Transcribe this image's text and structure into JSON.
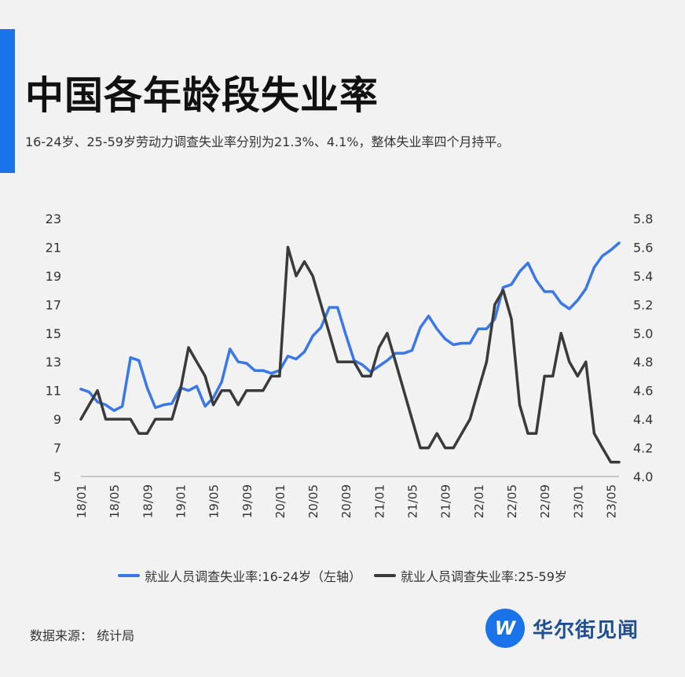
{
  "header": {
    "title": "中国各年龄段失业率",
    "subtitle": "16-24岁、25-59岁劳动力调查失业率分别为21.3%、4.1%，整体失业率四个月持平。"
  },
  "footer": {
    "source": "数据来源：  统计局",
    "logo_mark": "W",
    "logo_text": "华尔街见闻"
  },
  "colors": {
    "accent": "#1a73e8",
    "series_youth": "#3b78e7",
    "series_adult": "#3a3a3a"
  },
  "chart_data": {
    "type": "line",
    "x": [
      "18/01",
      "18/02",
      "18/03",
      "18/04",
      "18/05",
      "18/06",
      "18/07",
      "18/08",
      "18/09",
      "18/10",
      "18/11",
      "18/12",
      "19/01",
      "19/02",
      "19/03",
      "19/04",
      "19/05",
      "19/06",
      "19/07",
      "19/08",
      "19/09",
      "19/10",
      "19/11",
      "19/12",
      "20/01",
      "20/02",
      "20/03",
      "20/04",
      "20/05",
      "20/06",
      "20/07",
      "20/08",
      "20/09",
      "20/10",
      "20/11",
      "20/12",
      "21/01",
      "21/02",
      "21/03",
      "21/04",
      "21/05",
      "21/06",
      "21/07",
      "21/08",
      "21/09",
      "21/10",
      "21/11",
      "21/12",
      "22/01",
      "22/02",
      "22/03",
      "22/04",
      "22/05",
      "22/06",
      "22/07",
      "22/08",
      "22/09",
      "22/10",
      "22/11",
      "22/12",
      "23/01",
      "23/02",
      "23/03",
      "23/04",
      "23/05",
      "23/06"
    ],
    "xticks": [
      "18/01",
      "18/05",
      "18/09",
      "19/01",
      "19/05",
      "19/09",
      "20/01",
      "20/05",
      "20/09",
      "21/01",
      "21/05",
      "21/09",
      "22/01",
      "22/05",
      "22/09",
      "23/01",
      "23/05"
    ],
    "series": [
      {
        "name": "就业人员调查失业率:16-24岁（左轴）",
        "axis": "left",
        "values": [
          11.1,
          10.9,
          10.2,
          10.0,
          9.6,
          9.9,
          13.3,
          13.1,
          11.2,
          9.8,
          10.0,
          10.1,
          11.2,
          11.0,
          11.3,
          9.9,
          10.5,
          11.6,
          13.9,
          13.0,
          12.9,
          12.4,
          12.4,
          12.2,
          12.4,
          13.4,
          13.2,
          13.7,
          14.8,
          15.4,
          16.8,
          16.8,
          14.9,
          13.1,
          12.8,
          12.3,
          12.7,
          13.1,
          13.6,
          13.6,
          13.8,
          15.4,
          16.2,
          15.3,
          14.6,
          14.2,
          14.3,
          14.3,
          15.3,
          15.3,
          16.0,
          18.2,
          18.4,
          19.3,
          19.9,
          18.7,
          17.9,
          17.9,
          17.1,
          16.7,
          17.3,
          18.1,
          19.6,
          20.4,
          20.8,
          21.3
        ]
      },
      {
        "name": "就业人员调查失业率:25-59岁",
        "axis": "right",
        "values": [
          4.4,
          4.5,
          4.6,
          4.4,
          4.4,
          4.4,
          4.4,
          4.3,
          4.3,
          4.4,
          4.4,
          4.4,
          4.6,
          4.9,
          4.8,
          4.7,
          4.5,
          4.6,
          4.6,
          4.5,
          4.6,
          4.6,
          4.6,
          4.7,
          4.7,
          5.6,
          5.4,
          5.5,
          5.4,
          5.2,
          5.0,
          4.8,
          4.8,
          4.8,
          4.7,
          4.7,
          4.9,
          5.0,
          4.8,
          4.6,
          4.4,
          4.2,
          4.2,
          4.3,
          4.2,
          4.2,
          4.3,
          4.4,
          4.6,
          4.8,
          5.2,
          5.3,
          5.1,
          4.5,
          4.3,
          4.3,
          4.7,
          4.7,
          5.0,
          4.8,
          4.7,
          4.8,
          4.3,
          4.2,
          4.1,
          4.1
        ]
      }
    ],
    "y_left": {
      "lim": [
        5,
        23
      ],
      "ticks": [
        5,
        7,
        9,
        11,
        13,
        15,
        17,
        19,
        21,
        23
      ]
    },
    "y_right": {
      "lim": [
        4.0,
        5.8
      ],
      "ticks": [
        "4.0",
        "4.2",
        "4.4",
        "4.6",
        "4.8",
        "5.0",
        "5.2",
        "5.4",
        "5.6",
        "5.8"
      ]
    },
    "grid": false,
    "legend_position": "bottom"
  }
}
